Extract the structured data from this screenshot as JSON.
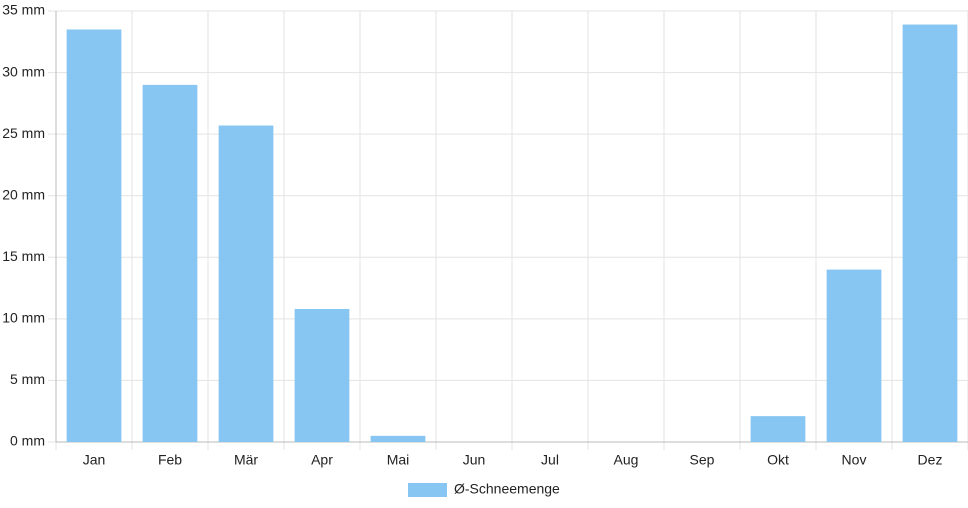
{
  "chart_data": {
    "type": "bar",
    "categories": [
      "Jan",
      "Feb",
      "Mär",
      "Apr",
      "Mai",
      "Jun",
      "Jul",
      "Aug",
      "Sep",
      "Okt",
      "Nov",
      "Dez"
    ],
    "series": [
      {
        "name": "Ø-Schneemenge",
        "color": "#87c6f2",
        "values": [
          33.5,
          29.0,
          25.7,
          10.8,
          0.5,
          0,
          0,
          0,
          0,
          2.1,
          14.0,
          33.9
        ]
      }
    ],
    "ylim": [
      0,
      35
    ],
    "yticks": [
      {
        "value": 0,
        "label": "0 mm"
      },
      {
        "value": 5,
        "label": "5 mm"
      },
      {
        "value": 10,
        "label": "10 mm"
      },
      {
        "value": 15,
        "label": "15 mm"
      },
      {
        "value": 20,
        "label": "20 mm"
      },
      {
        "value": 25,
        "label": "25 mm"
      },
      {
        "value": 30,
        "label": "30 mm"
      },
      {
        "value": 35,
        "label": "35 mm"
      }
    ],
    "grid": true,
    "legend": "bottom"
  }
}
